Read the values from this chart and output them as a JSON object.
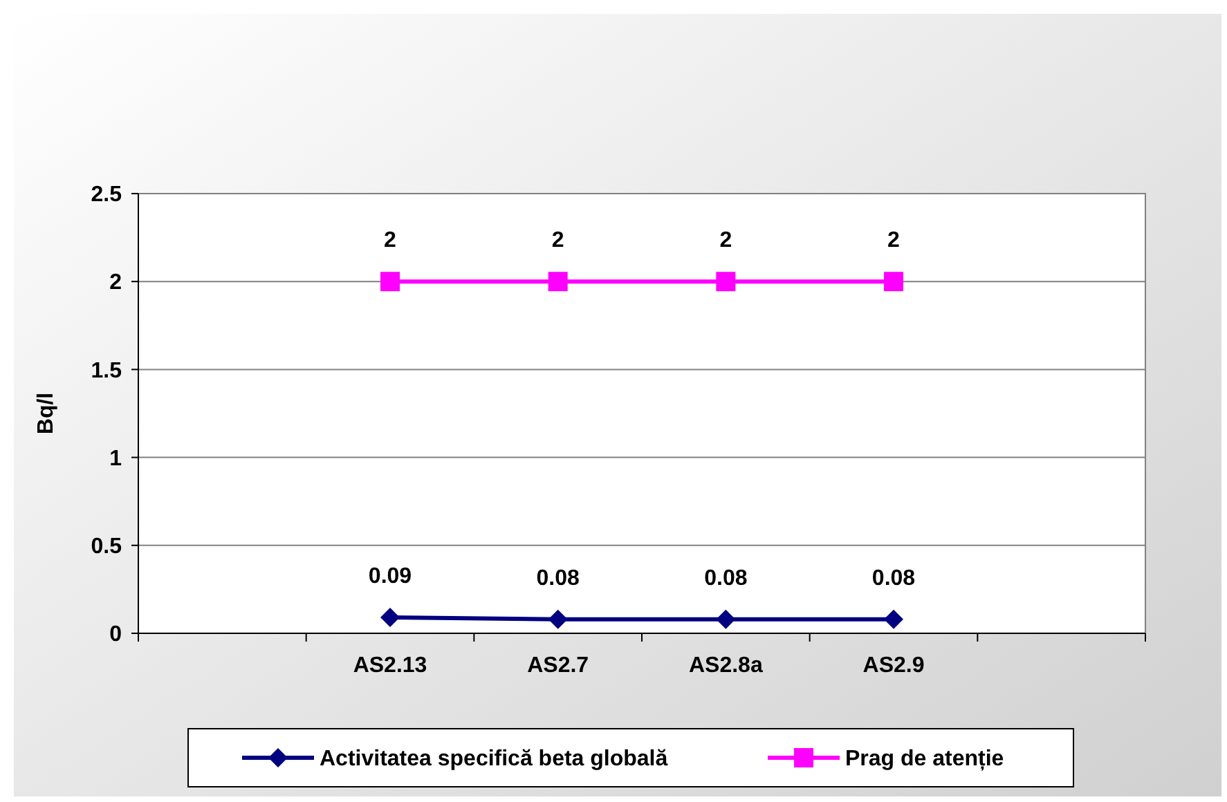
{
  "chart_data": {
    "type": "line",
    "ylabel": "Bq/l",
    "categories": [
      null,
      "AS2.13",
      "AS2.7",
      "AS2.8a",
      "AS2.9",
      null
    ],
    "series": [
      {
        "name": "Activitatea specifică beta globală",
        "color": "#000080",
        "marker": "diamond",
        "values": [
          null,
          0.09,
          0.08,
          0.08,
          0.08,
          null
        ]
      },
      {
        "name": "Prag de atenție",
        "color": "#ff00ff",
        "marker": "square",
        "values": [
          null,
          2,
          2,
          2,
          2,
          null
        ]
      }
    ],
    "ylim": [
      0,
      2.5
    ],
    "yticks": [
      0,
      0.5,
      1,
      1.5,
      2,
      2.5
    ],
    "grid": "y",
    "legend": "bottom",
    "data_labels": true
  }
}
